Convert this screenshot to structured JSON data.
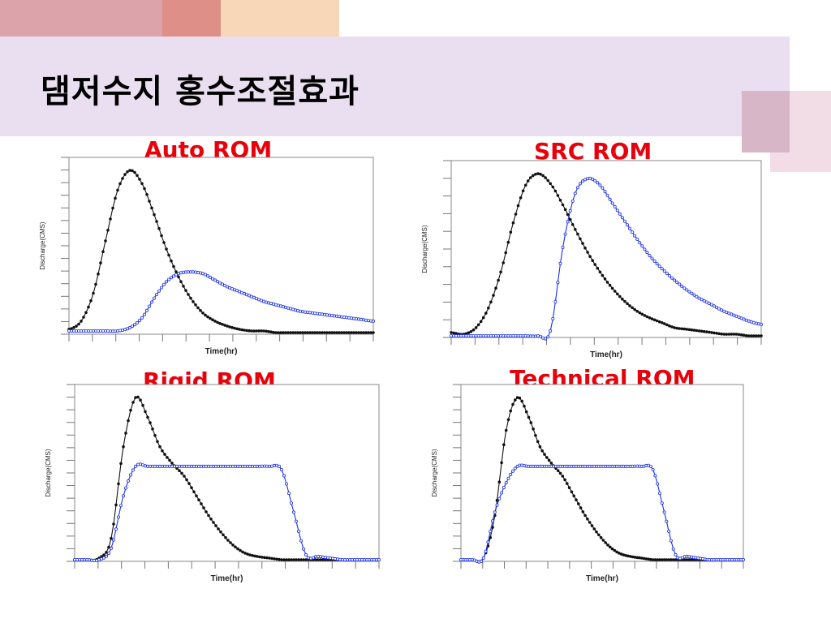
{
  "slide": {
    "title": "댐저수지 홍수조절효과"
  },
  "colors": {
    "inflow": "#111111",
    "outflow": "#1a2ee6",
    "chart_title": "#e8000b",
    "title_band": "#e9dff0"
  },
  "chart_data": [
    {
      "type": "line",
      "title": "Auto ROM",
      "xlabel": "Time(hr)",
      "ylabel": "Discharge(CMS)",
      "x": [
        0,
        4,
        8,
        12,
        16,
        20,
        24,
        28,
        32,
        36,
        40,
        44,
        48,
        52,
        56,
        60,
        64,
        68,
        72,
        76,
        80,
        84,
        88,
        92,
        96,
        100
      ],
      "series": [
        {
          "values": [
            3,
            8,
            25,
            57,
            88,
            100,
            92,
            73,
            52,
            35,
            22,
            13,
            8,
            5,
            3,
            2,
            2,
            1,
            1,
            1,
            1,
            1,
            1,
            1,
            1,
            1
          ]
        },
        {
          "values": [
            2,
            2,
            2,
            2,
            2,
            4,
            10,
            22,
            32,
            37,
            38,
            37,
            33,
            29,
            26,
            23,
            20,
            18,
            16,
            14,
            13,
            12,
            11,
            10,
            9,
            8
          ]
        }
      ]
    },
    {
      "type": "line",
      "title": "SRC ROM",
      "xlabel": "Time(hr)",
      "ylabel": "Discharge(CMS)",
      "x": [
        0,
        4,
        8,
        12,
        16,
        20,
        24,
        28,
        32,
        36,
        40,
        44,
        48,
        52,
        56,
        60,
        64,
        68,
        72,
        76,
        80,
        84,
        88,
        92,
        96,
        100
      ],
      "series": [
        {
          "values": [
            3,
            2,
            6,
            18,
            40,
            70,
            93,
            100,
            94,
            81,
            66,
            52,
            40,
            30,
            22,
            16,
            12,
            9,
            6,
            5,
            4,
            3,
            2,
            2,
            1,
            1
          ]
        },
        {
          "values": [
            1,
            1,
            1,
            1,
            1,
            1,
            1,
            1,
            4,
            55,
            88,
            97,
            93,
            82,
            71,
            60,
            50,
            42,
            35,
            29,
            24,
            20,
            16,
            13,
            10,
            8
          ]
        }
      ]
    },
    {
      "type": "line",
      "title": "Rigid ROM",
      "xlabel": "Time(hr)",
      "ylabel": "Discharge(CMS)",
      "x": [
        0,
        4,
        8,
        12,
        16,
        20,
        24,
        28,
        32,
        36,
        40,
        44,
        48,
        52,
        56,
        60,
        64,
        68,
        72,
        76,
        80,
        84,
        88,
        92,
        96,
        100
      ],
      "series": [
        {
          "values": [
            1,
            1,
            2,
            14,
            70,
            100,
            88,
            70,
            60,
            52,
            40,
            28,
            18,
            10,
            5,
            3,
            2,
            1,
            1,
            1,
            1,
            1,
            1,
            1,
            1,
            1
          ]
        },
        {
          "values": [
            1,
            1,
            1,
            8,
            40,
            58,
            58,
            58,
            58,
            58,
            58,
            58,
            58,
            58,
            58,
            58,
            58,
            56,
            30,
            4,
            3,
            2,
            1,
            1,
            1,
            1
          ]
        }
      ]
    },
    {
      "type": "line",
      "title": "Technical ROM",
      "xlabel": "Time(hr)",
      "ylabel": "Discharge(CMS)",
      "x": [
        0,
        4,
        8,
        12,
        16,
        20,
        24,
        28,
        32,
        36,
        40,
        44,
        48,
        52,
        56,
        60,
        64,
        68,
        72,
        76,
        80,
        84,
        88,
        92,
        96,
        100
      ],
      "series": [
        {
          "values": [
            1,
            1,
            2,
            28,
            80,
            100,
            88,
            70,
            60,
            52,
            40,
            28,
            18,
            10,
            5,
            3,
            2,
            1,
            1,
            1,
            1,
            1,
            1,
            1,
            1,
            1
          ]
        },
        {
          "values": [
            1,
            1,
            2,
            30,
            48,
            58,
            58,
            58,
            58,
            58,
            58,
            58,
            58,
            58,
            58,
            58,
            58,
            56,
            30,
            4,
            3,
            2,
            1,
            1,
            1,
            1
          ]
        }
      ]
    }
  ]
}
